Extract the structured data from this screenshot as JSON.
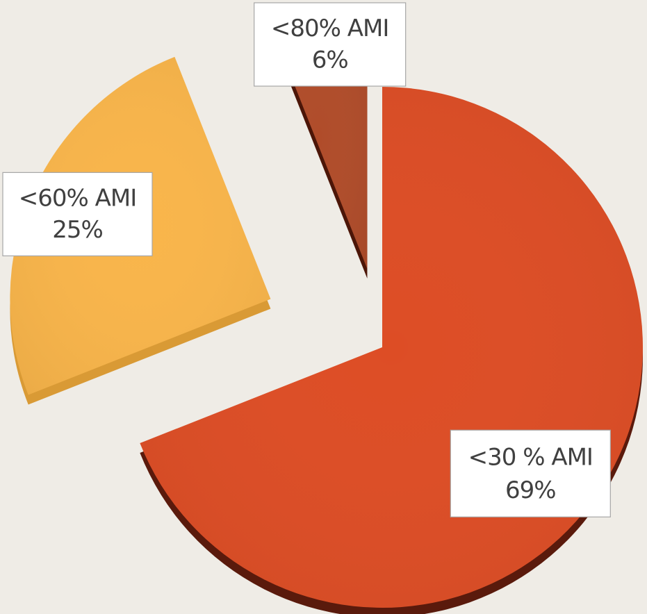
{
  "chart_data": {
    "type": "pie",
    "title": "",
    "style": "3d-exploded",
    "start_angle_deg": 90,
    "direction": "clockwise",
    "slices": [
      {
        "label": "<30 % AMI",
        "value": 69,
        "value_label": "69%",
        "color": "#dd4d25",
        "side_color": "#5a1a0c"
      },
      {
        "label": "<60% AMI",
        "value": 25,
        "value_label": "25%",
        "color": "#f9b54a",
        "side_color": "#d99a35"
      },
      {
        "label": "<80% AMI",
        "value": 6,
        "value_label": "6%",
        "color": "#b04c2a",
        "side_color": "#4c1608"
      }
    ]
  }
}
